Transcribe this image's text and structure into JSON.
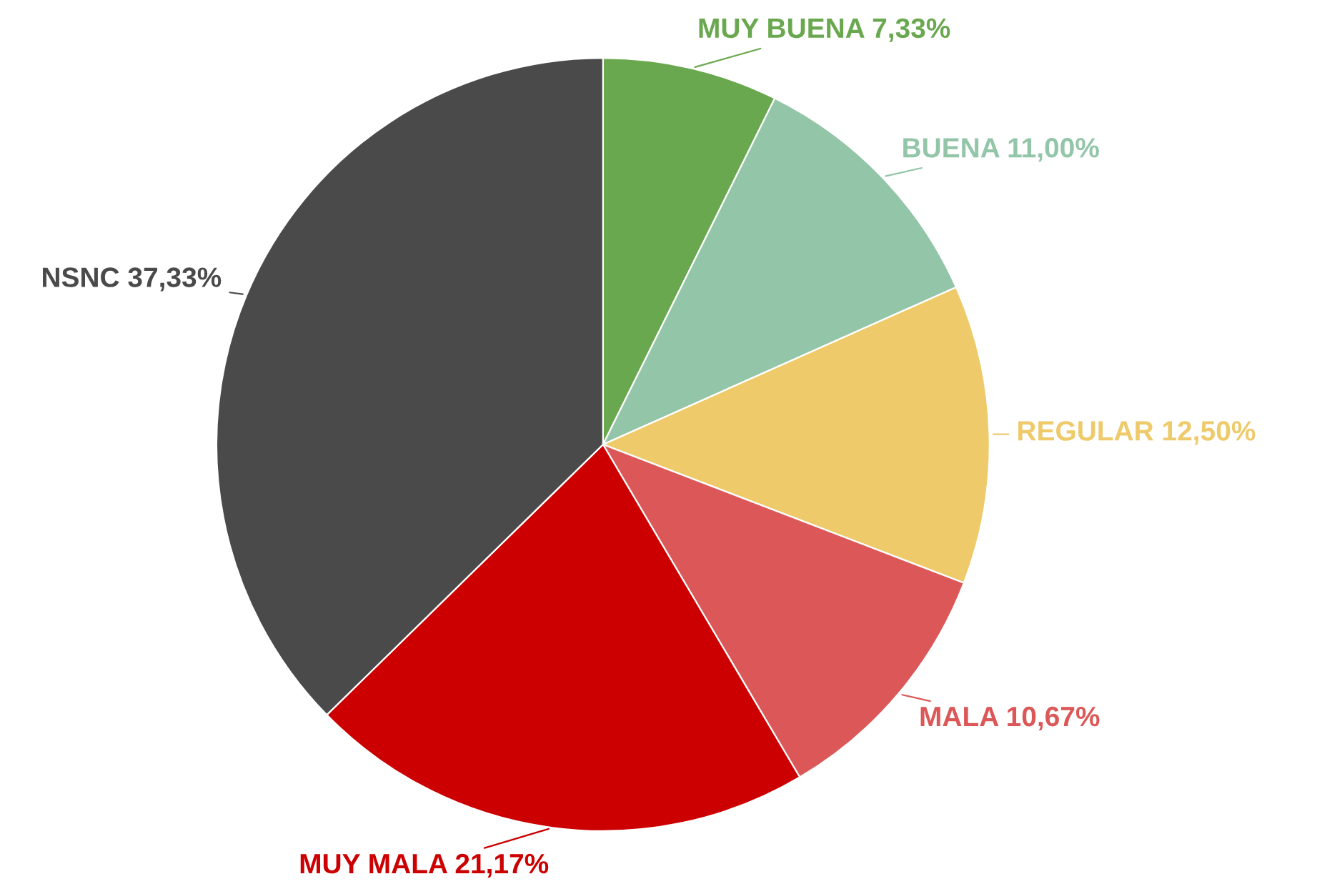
{
  "chart_data": {
    "type": "pie",
    "categories": [
      "MUY BUENA",
      "BUENA",
      "REGULAR",
      "MALA",
      "MUY MALA",
      "NSNC"
    ],
    "values": [
      7.33,
      11.0,
      12.5,
      10.67,
      21.17,
      37.33
    ],
    "value_labels": [
      "7,33%",
      "11,00%",
      "12,50%",
      "10,67%",
      "21,17%",
      "37,33%"
    ],
    "colors": [
      "#6aa84f",
      "#93c5a8",
      "#eeca6a",
      "#dc5858",
      "#cc0000",
      "#4a4a4a"
    ],
    "legend": false
  }
}
